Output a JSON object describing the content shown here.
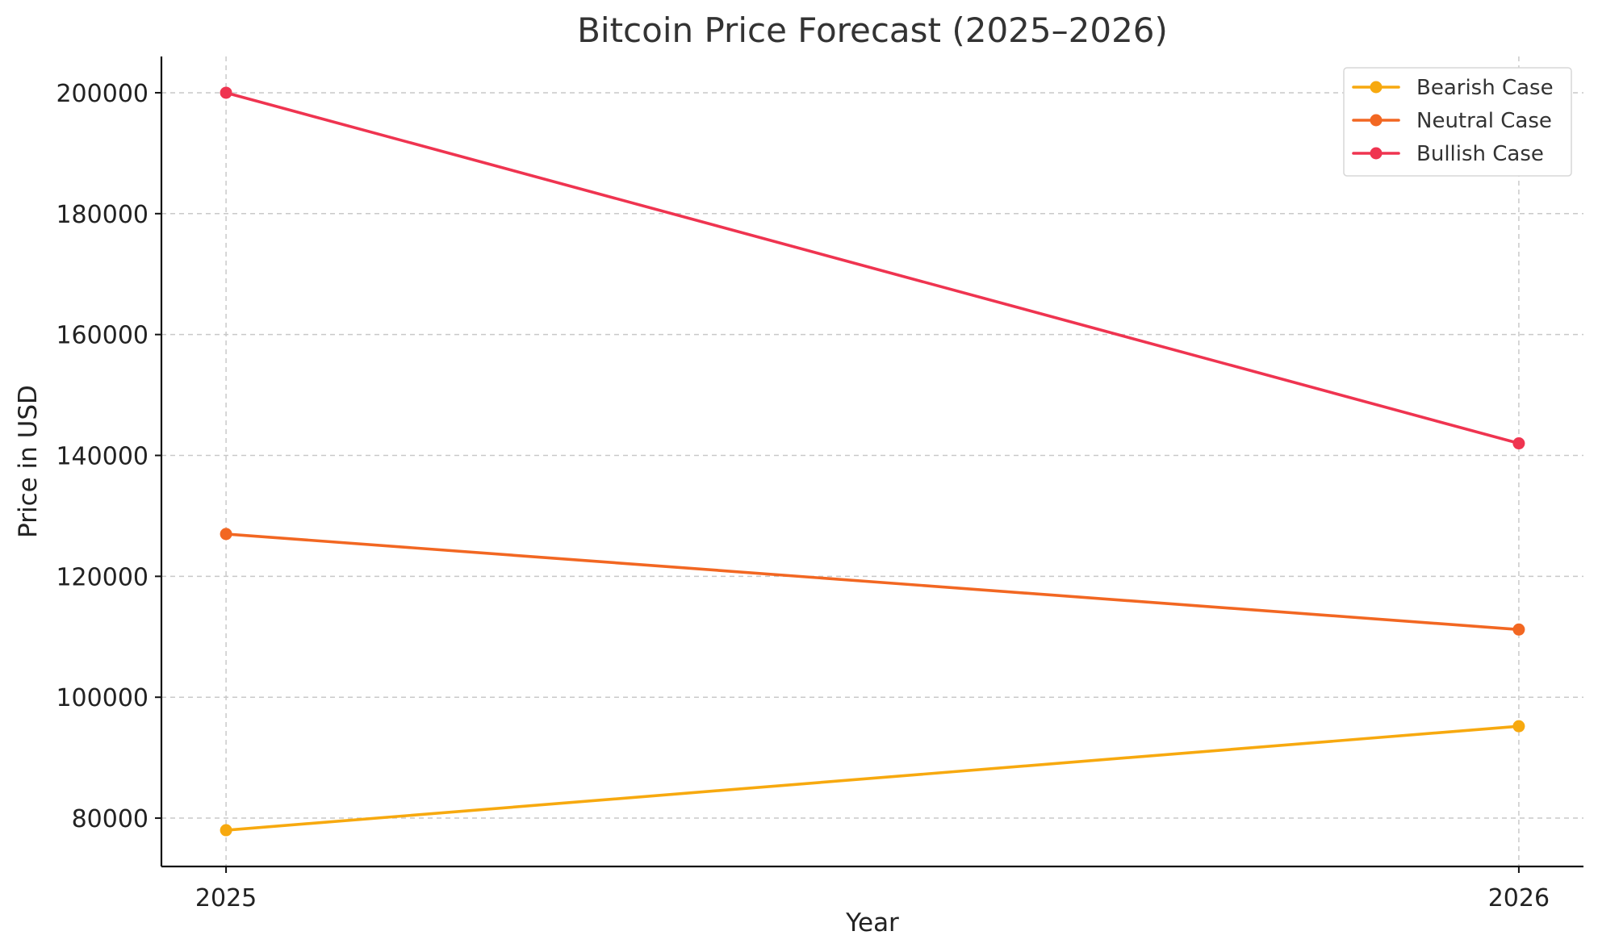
{
  "chart_data": {
    "type": "line",
    "title": "Bitcoin Price Forecast (2025–2026)",
    "xlabel": "Year",
    "ylabel": "Price in USD",
    "categories": [
      "2025",
      "2026"
    ],
    "x": [
      2025,
      2026
    ],
    "y_ticks": [
      80000,
      100000,
      120000,
      140000,
      160000,
      180000,
      200000
    ],
    "ylim": [
      72000,
      206000
    ],
    "grid": true,
    "legend_position": "top-right",
    "series": [
      {
        "name": "Bearish Case",
        "color": "#f7a90f",
        "values": [
          78000,
          95200
        ]
      },
      {
        "name": "Neutral Case",
        "color": "#f26722",
        "values": [
          127000,
          111200
        ]
      },
      {
        "name": "Bullish Case",
        "color": "#ef3450",
        "values": [
          200000,
          142000
        ]
      }
    ]
  }
}
